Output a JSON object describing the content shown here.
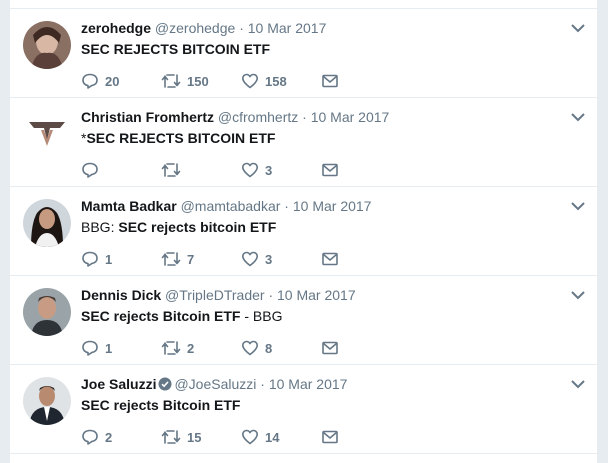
{
  "tweets": [
    {
      "name": "zerohedge",
      "handle": "@zerohedge",
      "separator": "·",
      "date": "10 Mar 2017",
      "verified": false,
      "text_prefix": "",
      "text_bold": "SEC REJECTS BITCOIN ETF",
      "text_suffix": "",
      "replies": "20",
      "retweets": "150",
      "likes": "158"
    },
    {
      "name": "Christian Fromhertz",
      "handle": "@cfromhertz",
      "separator": "·",
      "date": "10 Mar 2017",
      "verified": false,
      "text_prefix": "*",
      "text_bold": "SEC REJECTS BITCOIN ETF",
      "text_suffix": "",
      "replies": "",
      "retweets": "",
      "likes": "3"
    },
    {
      "name": "Mamta Badkar",
      "handle": "@mamtabadkar",
      "separator": "·",
      "date": "10 Mar 2017",
      "verified": false,
      "text_prefix": "BBG: ",
      "text_bold": "SEC rejects bitcoin ETF",
      "text_suffix": "",
      "replies": "1",
      "retweets": "7",
      "likes": "3"
    },
    {
      "name": "Dennis Dick",
      "handle": "@TripleDTrader",
      "separator": "·",
      "date": "10 Mar 2017",
      "verified": false,
      "text_prefix": "",
      "text_bold": "SEC rejects Bitcoin ETF",
      "text_suffix": " - BBG",
      "replies": "1",
      "retweets": "2",
      "likes": "8"
    },
    {
      "name": "Joe Saluzzi",
      "handle": "@JoeSaluzzi",
      "separator": "·",
      "date": "10 Mar 2017",
      "verified": true,
      "text_prefix": "",
      "text_bold": "SEC rejects Bitcoin ETF",
      "text_suffix": "",
      "replies": "2",
      "retweets": "15",
      "likes": "14"
    }
  ],
  "icons": {
    "reply": "reply-icon",
    "retweet": "retweet-icon",
    "like": "heart-icon",
    "dm": "envelope-icon",
    "caret": "chevron-down-icon",
    "verified": "verified-badge-icon"
  },
  "colors": {
    "icon_gray": "#657786",
    "verified_blue": "#1da1f2",
    "background": "#e6ecf0"
  }
}
